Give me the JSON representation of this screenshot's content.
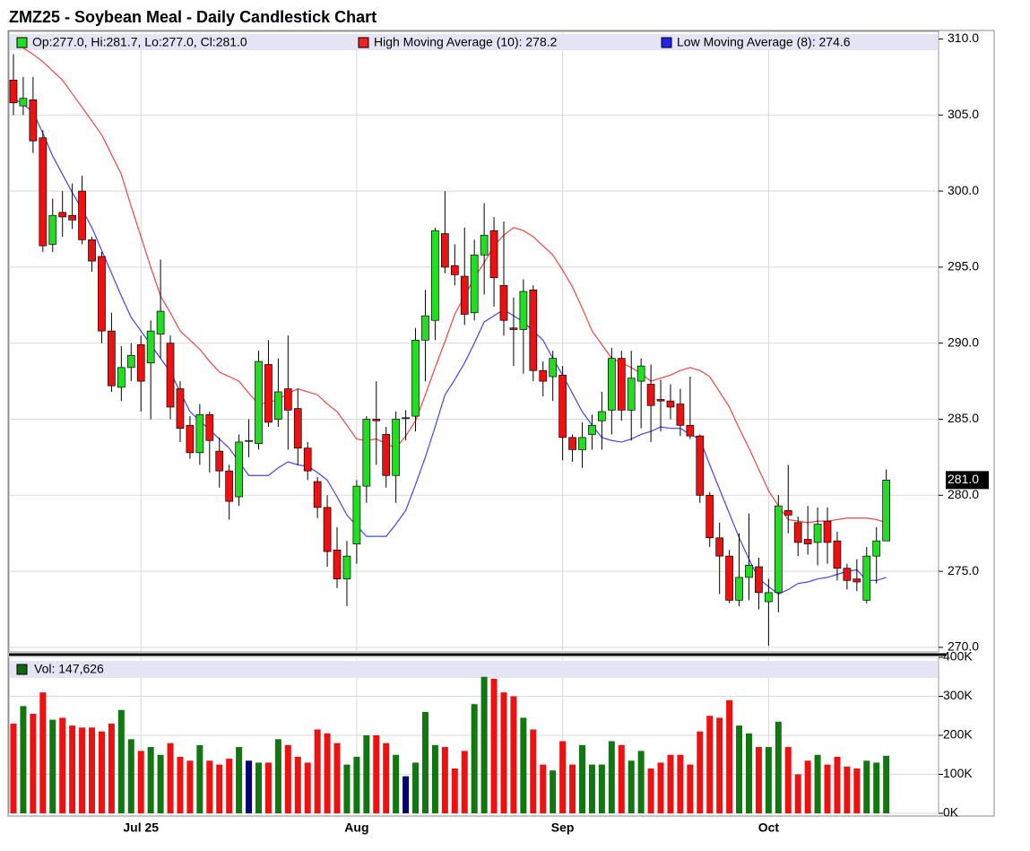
{
  "chart_data": [
    {
      "type": "candlestick",
      "title": "ZMZ25 - Soybean Meal - Daily Candlestick Chart",
      "ohlc_label": "Op:277.0, Hi:281.7, Lo:277.0, Cl:281.0",
      "last_label": "281.0",
      "up_color": "#22dd22",
      "down_color": "#ee1111",
      "open": [
        307.3,
        305.6,
        306.0,
        303.5,
        296.5,
        298.6,
        298.4,
        300.0,
        296.8,
        295.7,
        290.8,
        287.1,
        288.4,
        289.9,
        288.7,
        290.6,
        290.0,
        287.0,
        284.6,
        282.8,
        285.3,
        282.9,
        281.6,
        279.9,
        283.6,
        283.4,
        288.6,
        285.0,
        287.0,
        285.7,
        283.1,
        280.9,
        279.2,
        276.4,
        274.5,
        276.8,
        280.6,
        285.0,
        284.0,
        281.3,
        285.1,
        285.2,
        290.2,
        291.5,
        297.2,
        295.1,
        294.4,
        292.0,
        295.8,
        297.4,
        293.8,
        291.0,
        290.9,
        293.5,
        288.2,
        287.8,
        287.9,
        283.8,
        283.0,
        284.0,
        284.9,
        285.6,
        289.0,
        285.6,
        287.5,
        287.3,
        286.3,
        286.2,
        286.0,
        284.6,
        283.9,
        280.0,
        277.2,
        276.0,
        273.1,
        274.6,
        275.3,
        273.0,
        273.6,
        279.0,
        278.2,
        277.1,
        276.9,
        278.3,
        277.0,
        275.2,
        274.5,
        273.1,
        276.0,
        277.0
      ],
      "high": [
        309.0,
        307.5,
        307.5,
        304.0,
        299.5,
        300.0,
        300.5,
        301.0,
        297.0,
        296.0,
        292.0,
        289.8,
        290.0,
        290.5,
        291.5,
        295.5,
        290.5,
        287.5,
        285.2,
        286.0,
        285.5,
        283.8,
        282.0,
        284.0,
        285.0,
        289.5,
        290.2,
        289.0,
        290.5,
        287.0,
        283.5,
        281.2,
        280.0,
        277.9,
        277.0,
        281.0,
        285.2,
        287.5,
        284.5,
        285.5,
        285.6,
        291.0,
        293.5,
        297.6,
        300.0,
        296.5,
        297.6,
        296.8,
        299.2,
        298.3,
        298.0,
        293.0,
        294.2,
        293.8,
        288.8,
        289.5,
        288.5,
        284.0,
        284.8,
        285.3,
        286.8,
        289.7,
        289.5,
        289.5,
        289.0,
        288.6,
        287.6,
        287.3,
        287.0,
        287.8,
        284.0,
        280.2,
        278.2,
        276.4,
        277.5,
        278.8,
        275.9,
        274.5,
        280.0,
        282.0,
        278.6,
        279.3,
        279.2,
        279.2,
        277.6,
        275.5,
        275.8,
        276.6,
        277.9,
        281.7
      ],
      "low": [
        305.0,
        305.0,
        302.5,
        296.0,
        296.0,
        297.0,
        297.5,
        296.5,
        294.7,
        290.0,
        286.8,
        286.2,
        287.5,
        285.5,
        285.0,
        289.0,
        285.0,
        283.5,
        282.4,
        282.0,
        281.5,
        280.5,
        278.4,
        279.3,
        282.5,
        283.0,
        284.5,
        284.5,
        283.0,
        282.0,
        281.0,
        278.5,
        275.3,
        273.9,
        272.7,
        275.5,
        279.5,
        282.0,
        280.5,
        279.5,
        283.6,
        284.2,
        287.5,
        290.2,
        294.6,
        293.8,
        291.2,
        291.5,
        293.2,
        292.4,
        290.5,
        288.5,
        288.0,
        287.5,
        286.5,
        286.2,
        282.3,
        282.2,
        281.8,
        283.0,
        283.0,
        284.0,
        284.9,
        283.6,
        284.4,
        283.5,
        284.2,
        285.0,
        283.9,
        283.7,
        279.5,
        276.6,
        273.5,
        272.9,
        272.7,
        273.1,
        272.5,
        270.1,
        272.3,
        277.5,
        276.0,
        276.1,
        275.4,
        275.5,
        274.4,
        273.8,
        273.7,
        272.9,
        274.2,
        277.0
      ],
      "close": [
        305.8,
        306.1,
        303.3,
        296.4,
        298.4,
        298.3,
        298.1,
        296.8,
        295.4,
        290.8,
        287.2,
        288.4,
        289.2,
        287.5,
        290.8,
        292.1,
        285.8,
        284.4,
        282.8,
        285.3,
        283.6,
        281.6,
        279.6,
        283.5,
        283.6,
        288.8,
        284.8,
        286.8,
        285.6,
        283.1,
        281.6,
        279.2,
        276.3,
        274.5,
        276.0,
        280.6,
        285.0,
        284.9,
        281.3,
        285.0,
        285.1,
        290.2,
        291.8,
        297.4,
        295.0,
        294.5,
        291.9,
        295.8,
        297.1,
        294.3,
        291.5,
        290.9,
        293.4,
        288.2,
        287.5,
        289.0,
        283.8,
        283.0,
        283.8,
        284.6,
        285.5,
        289.0,
        285.6,
        287.7,
        288.5,
        285.9,
        286.2,
        285.8,
        284.6,
        283.9,
        280.0,
        277.2,
        276.0,
        273.1,
        274.6,
        275.4,
        273.6,
        273.6,
        279.3,
        278.7,
        276.9,
        276.8,
        278.1,
        276.9,
        275.2,
        274.4,
        274.3,
        276.0,
        277.0,
        281.0
      ],
      "series": [
        {
          "name": "High Moving Average (10): 278.2",
          "color": "#ee2222",
          "values": [
            null,
            309.4,
            309.0,
            308.5,
            307.9,
            307.3,
            306.4,
            305.5,
            304.6,
            303.7,
            302.4,
            301.1,
            299.0,
            297.0,
            295.0,
            293.1,
            292.0,
            290.8,
            290.2,
            289.6,
            288.8,
            288.1,
            287.8,
            287.5,
            286.7,
            286.0,
            286.1,
            286.3,
            286.7,
            287.0,
            286.8,
            286.6,
            286.0,
            285.5,
            284.6,
            283.7,
            283.6,
            283.7,
            283.4,
            283.1,
            283.9,
            284.9,
            286.6,
            288.4,
            290.1,
            291.9,
            293.1,
            294.3,
            295.3,
            296.4,
            297.1,
            297.6,
            297.4,
            297.0,
            296.4,
            295.8,
            294.8,
            293.7,
            292.3,
            290.8,
            289.9,
            289.0,
            288.7,
            288.4,
            288.0,
            287.5,
            287.7,
            287.9,
            288.2,
            288.4,
            288.2,
            287.8,
            286.8,
            285.8,
            284.4,
            283.1,
            281.7,
            280.3,
            279.3,
            278.4,
            278.3,
            278.2,
            278.3,
            278.3,
            278.4,
            278.5,
            278.5,
            278.5,
            278.4,
            278.2
          ]
        },
        {
          "name": "Low Moving Average (8): 274.6",
          "color": "#2222ee",
          "values": [
            306.1,
            305.7,
            305.2,
            303.8,
            302.3,
            301.1,
            299.9,
            298.8,
            297.6,
            296.1,
            294.6,
            293.1,
            291.7,
            290.8,
            289.9,
            289.0,
            288.1,
            286.8,
            285.5,
            284.9,
            284.3,
            283.7,
            283.1,
            282.2,
            281.3,
            281.3,
            281.3,
            281.8,
            282.2,
            282.0,
            281.9,
            281.5,
            281.0,
            279.9,
            278.7,
            278.0,
            277.3,
            277.3,
            277.3,
            278.1,
            279.0,
            280.7,
            282.5,
            284.5,
            286.6,
            287.6,
            288.7,
            290.0,
            291.4,
            291.8,
            292.2,
            291.8,
            291.4,
            290.8,
            290.2,
            289.0,
            287.9,
            286.7,
            285.5,
            284.6,
            283.8,
            283.6,
            283.5,
            283.7,
            284.0,
            284.2,
            284.5,
            284.4,
            284.4,
            284.0,
            283.7,
            282.0,
            280.4,
            278.8,
            277.2,
            275.8,
            274.5,
            274.0,
            273.5,
            273.8,
            274.2,
            274.3,
            274.5,
            274.6,
            274.8,
            275.0,
            275.1,
            274.4,
            274.4,
            274.6
          ]
        }
      ],
      "ylim": [
        269.7,
        310.5
      ],
      "yticks": [
        {
          "value": 270,
          "label": "270.0"
        },
        {
          "value": 275,
          "label": "275.0"
        },
        {
          "value": 280,
          "label": "280.0"
        },
        {
          "value": 285,
          "label": "285.0"
        },
        {
          "value": 290,
          "label": "290.0"
        },
        {
          "value": 295,
          "label": "295.0"
        },
        {
          "value": 300,
          "label": "300.0"
        },
        {
          "value": 305,
          "label": "305.0"
        },
        {
          "value": 310,
          "label": "310.0"
        }
      ],
      "grid": true
    },
    {
      "type": "bar",
      "legend_label": "Vol: 147,626",
      "legend_color": "#116611",
      "up_color": "#117711",
      "down_color": "#ee1111",
      "flat_color": "#000077",
      "categories": [
        null,
        null,
        null,
        null,
        null,
        null,
        null,
        null,
        null,
        null,
        null,
        null,
        null,
        "Jul 25",
        null,
        null,
        null,
        null,
        null,
        null,
        null,
        null,
        null,
        null,
        null,
        null,
        null,
        null,
        null,
        null,
        null,
        null,
        null,
        null,
        null,
        "Aug",
        null,
        null,
        null,
        null,
        null,
        null,
        null,
        null,
        null,
        null,
        null,
        null,
        null,
        null,
        null,
        null,
        null,
        null,
        null,
        null,
        "Sep",
        null,
        null,
        null,
        null,
        null,
        null,
        null,
        null,
        null,
        null,
        null,
        null,
        null,
        null,
        null,
        null,
        null,
        null,
        null,
        null,
        "Oct",
        null,
        null,
        null,
        null,
        null,
        null,
        null,
        null,
        null,
        null,
        null,
        null
      ],
      "values": [
        230000,
        275000,
        255000,
        310000,
        240000,
        245000,
        225000,
        220000,
        220000,
        210000,
        230000,
        265000,
        190000,
        160000,
        170000,
        150000,
        180000,
        145000,
        135000,
        175000,
        135000,
        125000,
        140000,
        170000,
        135000,
        130000,
        130000,
        190000,
        175000,
        145000,
        130000,
        215000,
        205000,
        180000,
        125000,
        145000,
        200000,
        200000,
        180000,
        150000,
        95000,
        130000,
        260000,
        175000,
        170000,
        115000,
        160000,
        280000,
        350000,
        345000,
        310000,
        300000,
        245000,
        215000,
        125000,
        110000,
        185000,
        125000,
        175000,
        125000,
        125000,
        185000,
        175000,
        135000,
        160000,
        115000,
        130000,
        150000,
        150000,
        125000,
        210000,
        250000,
        245000,
        290000,
        225000,
        205000,
        170000,
        170000,
        235000,
        170000,
        100000,
        135000,
        150000,
        125000,
        145000,
        120000,
        115000,
        135000,
        130000,
        147626
      ],
      "ylim": [
        0,
        400000
      ],
      "yticks": [
        {
          "value": 0,
          "label": "0K"
        },
        {
          "value": 100000,
          "label": "100K"
        },
        {
          "value": 200000,
          "label": "200K"
        },
        {
          "value": 300000,
          "label": "300K"
        },
        {
          "value": 400000,
          "label": "400K"
        }
      ],
      "grid": true
    }
  ]
}
